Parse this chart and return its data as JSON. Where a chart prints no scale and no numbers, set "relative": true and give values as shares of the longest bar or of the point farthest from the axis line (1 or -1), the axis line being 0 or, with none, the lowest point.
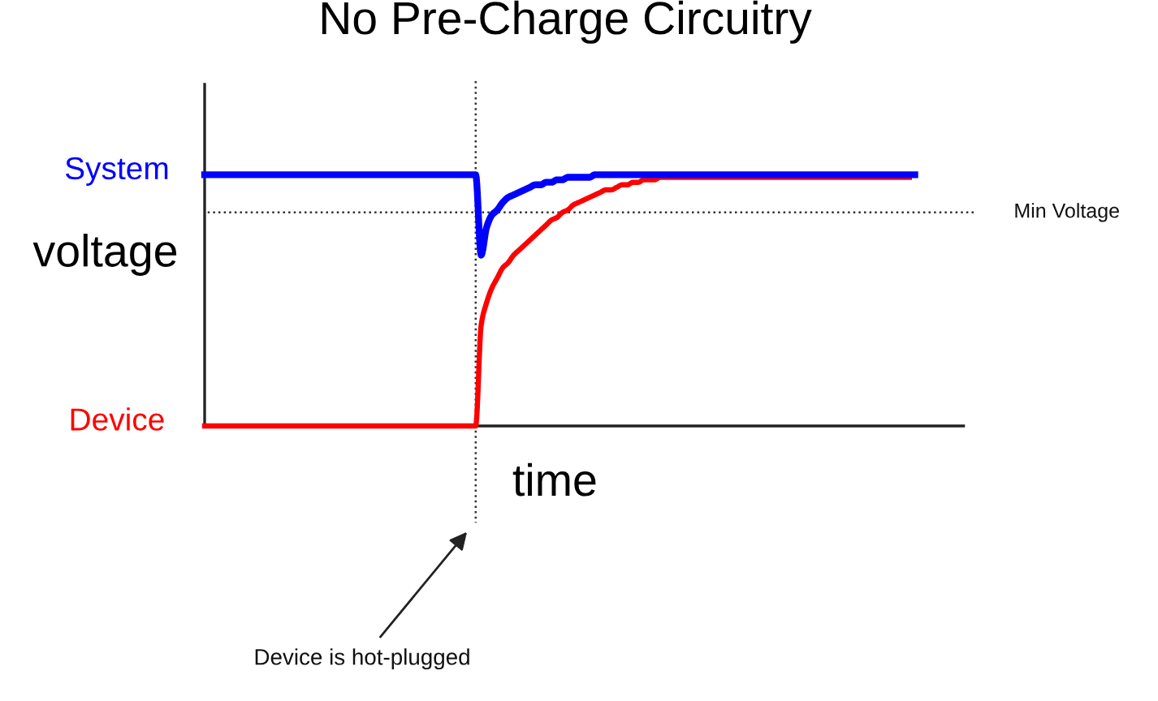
{
  "chart_data": {
    "type": "line",
    "title": "No Pre-Charge Circuitry",
    "xlabel": "time",
    "ylabel": "voltage",
    "relative": true,
    "legend": false,
    "tick_labels": false,
    "categories": [
      null,
      null,
      null,
      null,
      null,
      null,
      null,
      null,
      null,
      null,
      null,
      null,
      null,
      null,
      null,
      null,
      null,
      null,
      null,
      null,
      null,
      null,
      null,
      null,
      null,
      null,
      null,
      null,
      null,
      null,
      null,
      null,
      null,
      null,
      null,
      null,
      null,
      null,
      null,
      null,
      null,
      null,
      null,
      null,
      null,
      null,
      null,
      null,
      null,
      null,
      null,
      null,
      null,
      null,
      null,
      null,
      null,
      null,
      null,
      null,
      null,
      null,
      null,
      null,
      null,
      null,
      null,
      null,
      null,
      null,
      null,
      null,
      null,
      null,
      null,
      null,
      null,
      null,
      null,
      null,
      null,
      null,
      null,
      null,
      null,
      null,
      null,
      null,
      null,
      null,
      null,
      null,
      null,
      null,
      null,
      null,
      null,
      null,
      null,
      null,
      null,
      null,
      null,
      null,
      null,
      null,
      null,
      null,
      null,
      null,
      null,
      null,
      null,
      null,
      null,
      null,
      null,
      null,
      null,
      null,
      null,
      null,
      null,
      null,
      null,
      null,
      null,
      null,
      null,
      null,
      null,
      null,
      null,
      null,
      null,
      null,
      null,
      null,
      null,
      null,
      null
    ],
    "series": [
      {
        "name": "System",
        "color": "#0000ff",
        "values": [
          1,
          1,
          1,
          1,
          1,
          1,
          1,
          1,
          1,
          1,
          1,
          1,
          1,
          1,
          1,
          1,
          1,
          1,
          1,
          1,
          1,
          1,
          1,
          1,
          1,
          1,
          1,
          1,
          1,
          1,
          1,
          1,
          1,
          1,
          1,
          1,
          1,
          1,
          1,
          1,
          1,
          1,
          1,
          1,
          1,
          1,
          1,
          1,
          1,
          1,
          1,
          0.68,
          0.79,
          0.84,
          0.86,
          0.89,
          0.91,
          0.92,
          0.93,
          0.94,
          0.95,
          0.96,
          0.96,
          0.97,
          0.97,
          0.98,
          0.98,
          0.99,
          0.99,
          0.99,
          0.99,
          0.99,
          1,
          1,
          1,
          1,
          1,
          1,
          1,
          1,
          1,
          1,
          1,
          1,
          1,
          1,
          1,
          1,
          1,
          1,
          1,
          1,
          1,
          1,
          1,
          1,
          1,
          1,
          1,
          1,
          1,
          1,
          1,
          1,
          1,
          1,
          1,
          1,
          1,
          1,
          1,
          1,
          1,
          1,
          1,
          1,
          1,
          1,
          1,
          1,
          1,
          1,
          1,
          1,
          1,
          1,
          1,
          1,
          1,
          1,
          1,
          1,
          null,
          null,
          null,
          null,
          null,
          null,
          null,
          null,
          null
        ]
      },
      {
        "name": "Device",
        "color": "#ff0000",
        "values": [
          0,
          0,
          0,
          0,
          0,
          0,
          0,
          0,
          0,
          0,
          0,
          0,
          0,
          0,
          0,
          0,
          0,
          0,
          0,
          0,
          0,
          0,
          0,
          0,
          0,
          0,
          0,
          0,
          0,
          0,
          0,
          0,
          0,
          0,
          0,
          0,
          0,
          0,
          0,
          0,
          0,
          0,
          0,
          0,
          0,
          0,
          0,
          0,
          0,
          0,
          0,
          0.4,
          0.49,
          0.55,
          0.59,
          0.63,
          0.65,
          0.68,
          0.7,
          0.72,
          0.74,
          0.76,
          0.78,
          0.8,
          0.82,
          0.83,
          0.85,
          0.86,
          0.88,
          0.89,
          0.9,
          0.91,
          0.92,
          0.93,
          0.94,
          0.94,
          0.95,
          0.96,
          0.96,
          0.97,
          0.97,
          0.98,
          0.98,
          0.98,
          0.99,
          0.99,
          0.99,
          0.99,
          0.99,
          0.99,
          0.99,
          0.99,
          0.99,
          0.99,
          0.99,
          0.99,
          0.99,
          0.99,
          0.99,
          0.99,
          0.99,
          0.99,
          0.99,
          0.99,
          0.99,
          0.99,
          0.99,
          0.99,
          0.99,
          0.99,
          0.99,
          0.99,
          0.99,
          0.99,
          0.99,
          0.99,
          0.99,
          0.99,
          0.99,
          0.99,
          0.99,
          0.99,
          0.99,
          0.99,
          0.99,
          0.99,
          0.99,
          0.99,
          0.99,
          0.99,
          0.99,
          null,
          null,
          null,
          null,
          null,
          null,
          null,
          null,
          null,
          null
        ]
      }
    ],
    "ref_lines": [
      {
        "axis": "y",
        "value": 0.85,
        "label": "Min Voltage",
        "color": "#333333",
        "line_style": "dotted"
      }
    ],
    "annotations": [
      "Device is hot-plugged"
    ]
  }
}
